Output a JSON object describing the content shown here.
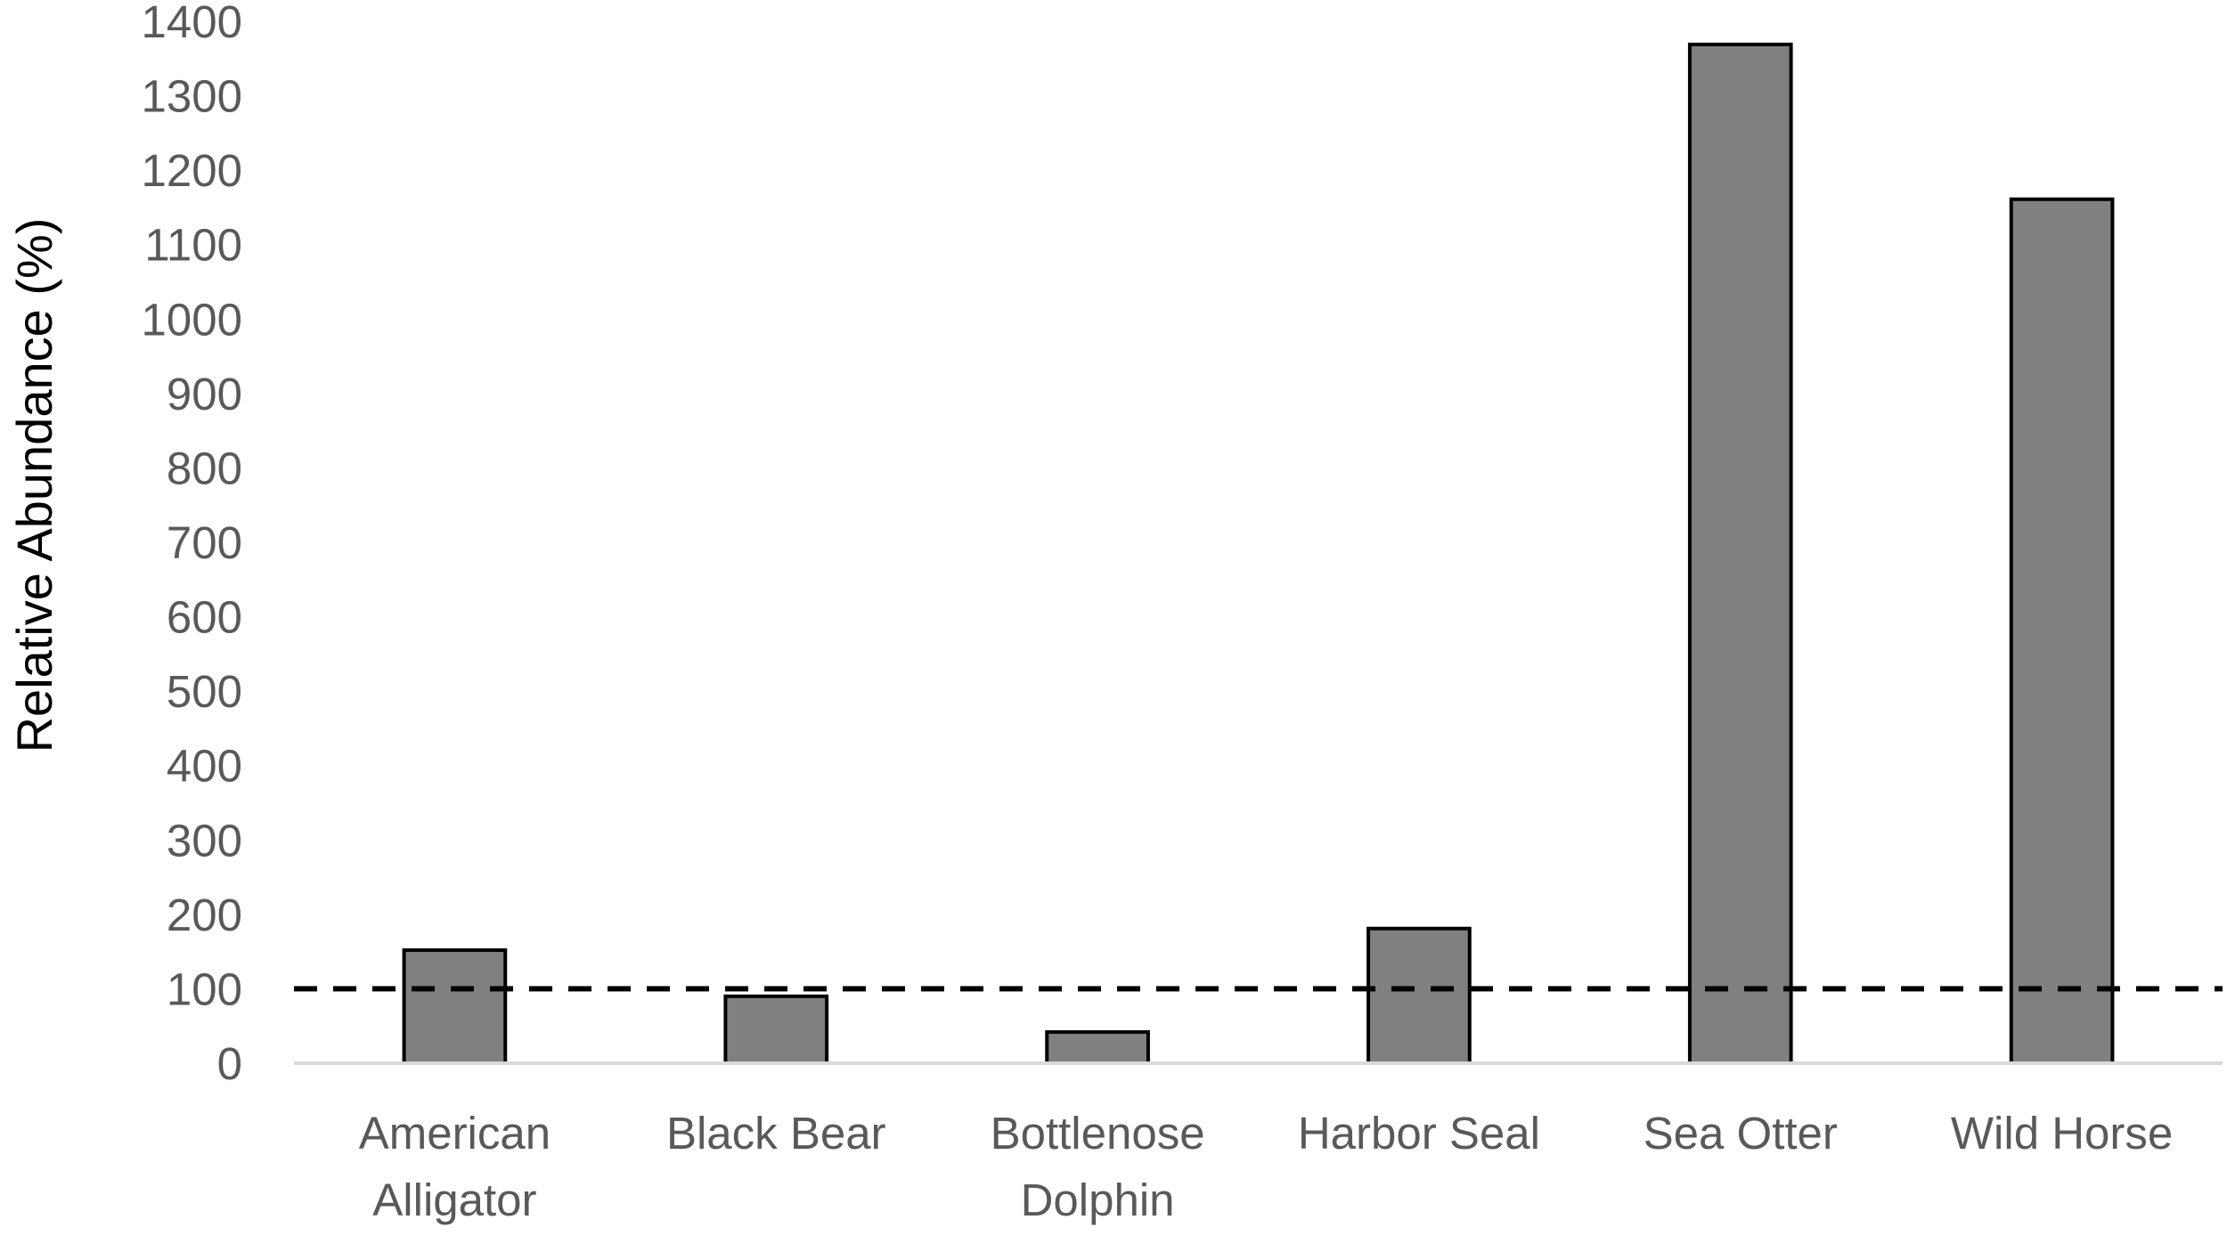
{
  "chart_data": {
    "type": "bar",
    "title": "",
    "xlabel": "",
    "ylabel": "Relative Abundance (%)",
    "categories": [
      [
        "American",
        "Alligator"
      ],
      [
        "Black Bear"
      ],
      [
        "Bottlenose",
        "Dolphin"
      ],
      [
        "Harbor Seal"
      ],
      [
        "Sea Otter"
      ],
      [
        "Wild Horse"
      ]
    ],
    "values": [
      152,
      90,
      42,
      181,
      1369,
      1161
    ],
    "ylim": [
      0,
      1400
    ],
    "yticks": [
      0,
      100,
      200,
      300,
      400,
      500,
      600,
      700,
      800,
      900,
      1000,
      1100,
      1200,
      1300,
      1400
    ],
    "reference_line": {
      "value": 100,
      "style": "dashed",
      "color": "#000000"
    },
    "grid": false,
    "legend": "none",
    "colors": {
      "bar_fill": "#808080",
      "bar_stroke": "#000000",
      "axis": "#d9d9d9",
      "tick_text": "#595959"
    }
  }
}
